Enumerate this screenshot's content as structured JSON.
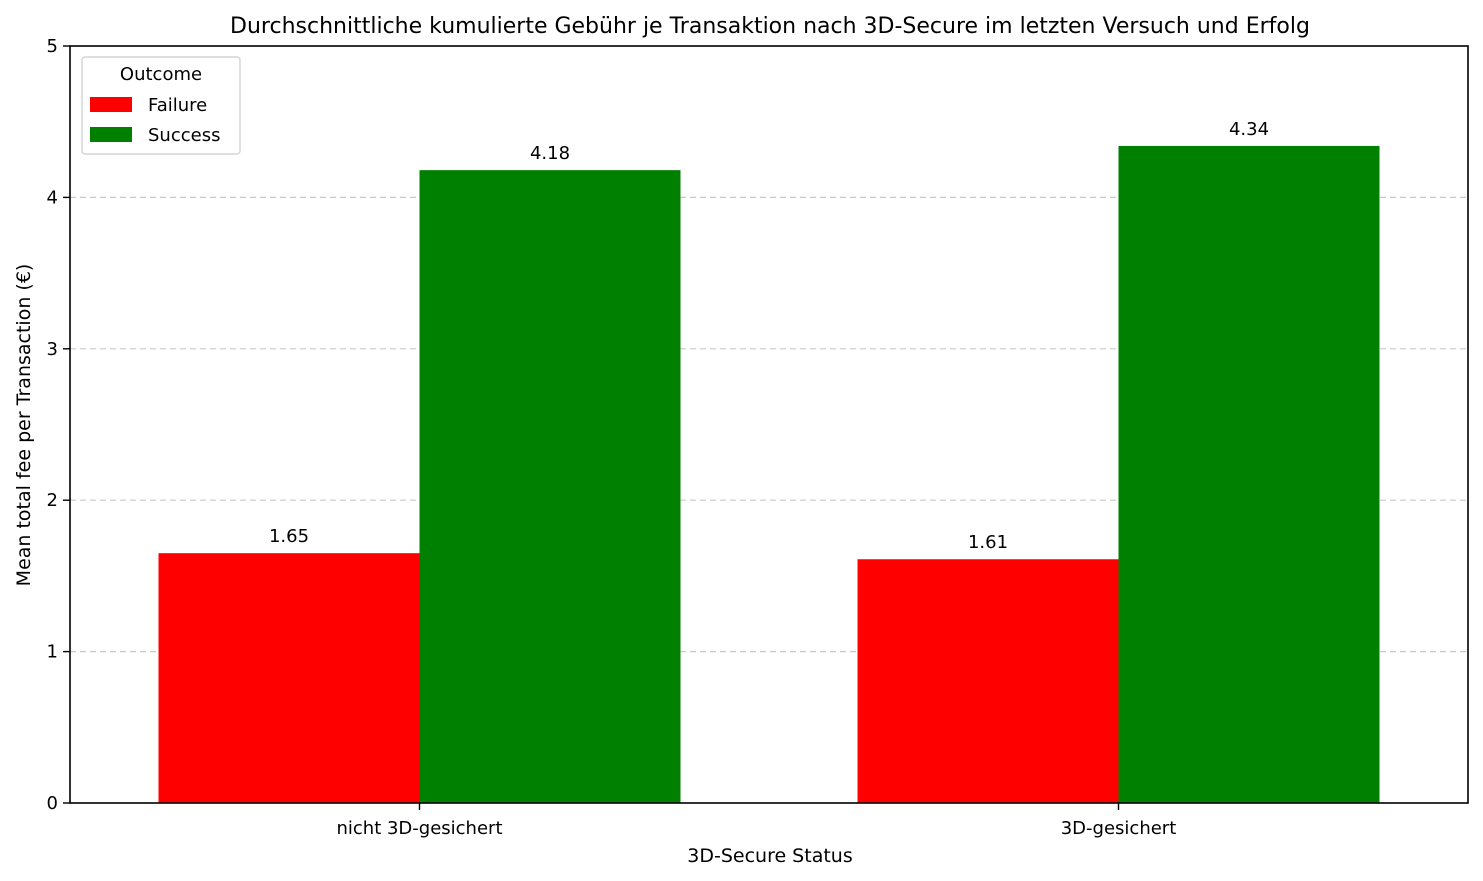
{
  "chart_data": {
    "type": "bar",
    "title": "Durchschnittliche kumulierte Gebühr je Transaktion nach 3D-Secure im letzten Versuch und Erfolg",
    "xlabel": "3D-Secure Status",
    "ylabel": "Mean total fee per Transaction (€)",
    "categories": [
      "nicht 3D-gesichert",
      "3D-gesichert"
    ],
    "series": [
      {
        "name": "Failure",
        "values": [
          1.65,
          1.61
        ],
        "color": "#ff0000"
      },
      {
        "name": "Success",
        "values": [
          4.18,
          4.34
        ],
        "color": "#008000"
      }
    ],
    "data_labels": [
      [
        "1.65",
        "1.61"
      ],
      [
        "4.18",
        "4.34"
      ]
    ],
    "ylim": [
      0,
      5
    ],
    "yticks": [
      "0",
      "1",
      "2",
      "3",
      "4",
      "5"
    ],
    "grid": "y, dashed",
    "legend": {
      "title": "Outcome",
      "placement": "top-left"
    }
  }
}
